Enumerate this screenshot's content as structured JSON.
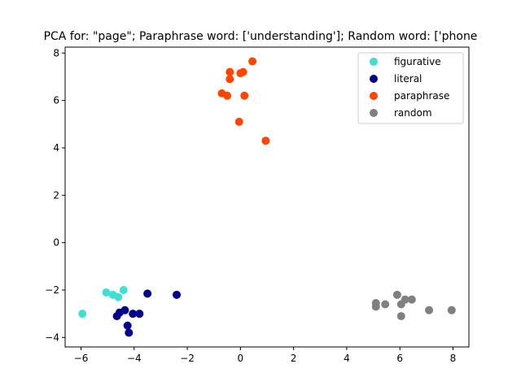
{
  "chart_data": {
    "type": "scatter",
    "title": "PCA for: \"page\"; Paraphrase word: ['understanding']; Random word: ['phone",
    "xlabel": "",
    "ylabel": "",
    "xlim": [
      -6.6,
      8.6
    ],
    "ylim": [
      -4.4,
      8.25
    ],
    "xticks": [
      -6,
      -4,
      -2,
      0,
      2,
      4,
      6,
      8
    ],
    "yticks": [
      -4,
      -2,
      0,
      2,
      4,
      6,
      8
    ],
    "grid": false,
    "legend_position": "top-right",
    "series": [
      {
        "name": "figurative",
        "color": "#40e0d0",
        "points": [
          [
            -5.95,
            -3.0
          ],
          [
            -5.05,
            -2.1
          ],
          [
            -4.8,
            -2.2
          ],
          [
            -4.6,
            -2.3
          ],
          [
            -4.4,
            -2.0
          ]
        ]
      },
      {
        "name": "literal",
        "color": "#00008b",
        "points": [
          [
            -4.65,
            -3.1
          ],
          [
            -4.55,
            -2.95
          ],
          [
            -4.35,
            -2.85
          ],
          [
            -4.25,
            -3.5
          ],
          [
            -4.2,
            -3.8
          ],
          [
            -4.05,
            -3.0
          ],
          [
            -3.8,
            -3.0
          ],
          [
            -3.5,
            -2.15
          ],
          [
            -2.4,
            -2.2
          ]
        ]
      },
      {
        "name": "paraphrase",
        "color": "#ff4500",
        "points": [
          [
            -0.7,
            6.3
          ],
          [
            -0.5,
            6.2
          ],
          [
            -0.4,
            7.2
          ],
          [
            -0.4,
            6.9
          ],
          [
            -0.05,
            5.1
          ],
          [
            0.0,
            7.15
          ],
          [
            0.1,
            7.2
          ],
          [
            0.15,
            6.2
          ],
          [
            0.45,
            7.65
          ],
          [
            0.95,
            4.3
          ]
        ]
      },
      {
        "name": "random",
        "color": "#808080",
        "points": [
          [
            5.1,
            -2.55
          ],
          [
            5.1,
            -2.7
          ],
          [
            5.45,
            -2.6
          ],
          [
            5.9,
            -2.2
          ],
          [
            6.05,
            -2.6
          ],
          [
            6.05,
            -3.1
          ],
          [
            6.2,
            -2.4
          ],
          [
            6.45,
            -2.4
          ],
          [
            7.1,
            -2.85
          ],
          [
            7.95,
            -2.85
          ]
        ]
      }
    ]
  }
}
